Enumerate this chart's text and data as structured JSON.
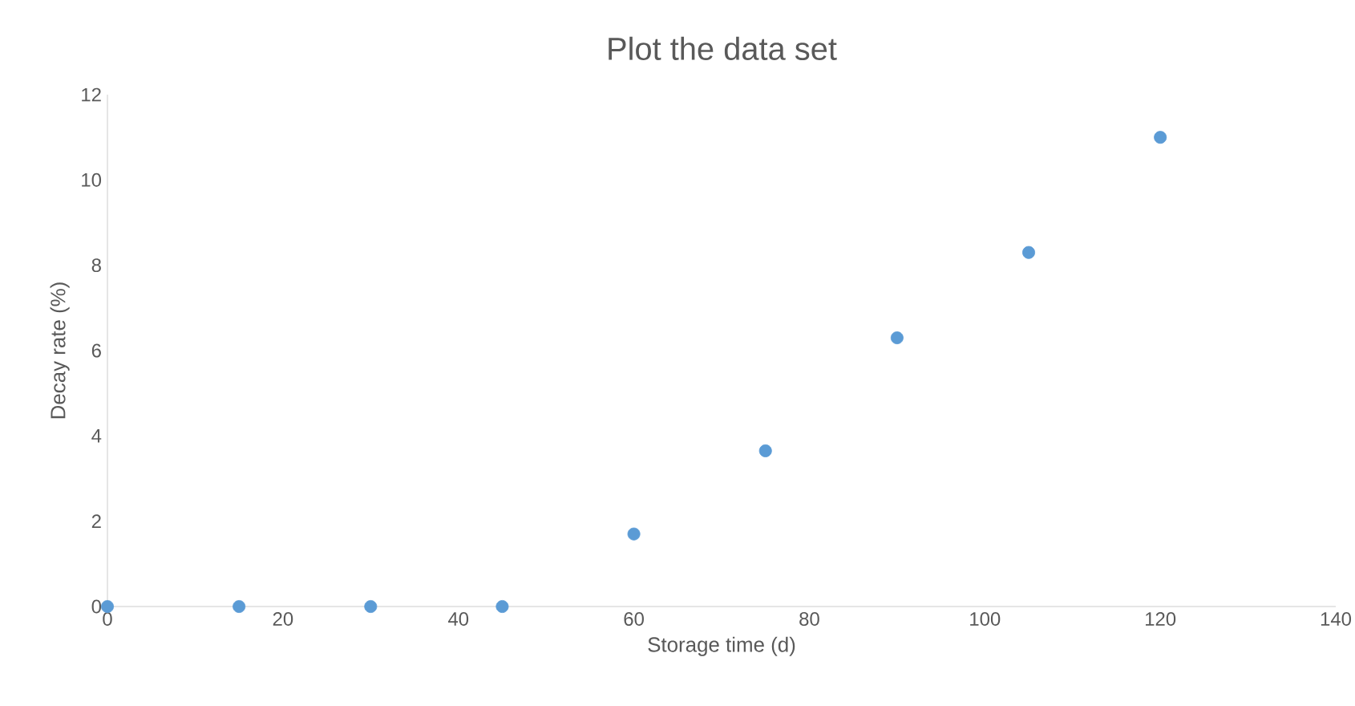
{
  "chart_data": {
    "type": "scatter",
    "title": "Plot the data set",
    "xlabel": "Storage time (d)",
    "ylabel": "Decay rate (%)",
    "x": [
      0,
      15,
      30,
      45,
      60,
      75,
      90,
      105,
      120
    ],
    "values": [
      0,
      0,
      0,
      0,
      1.7,
      3.65,
      6.3,
      8.3,
      11.0
    ],
    "color": "#5b9bd5",
    "xlim": [
      0,
      140
    ],
    "xticks": [
      0,
      20,
      40,
      60,
      80,
      100,
      120,
      140
    ],
    "ylim": [
      0,
      12
    ],
    "yticks": [
      0,
      2,
      4,
      6,
      8,
      10,
      12
    ],
    "grid": false
  }
}
